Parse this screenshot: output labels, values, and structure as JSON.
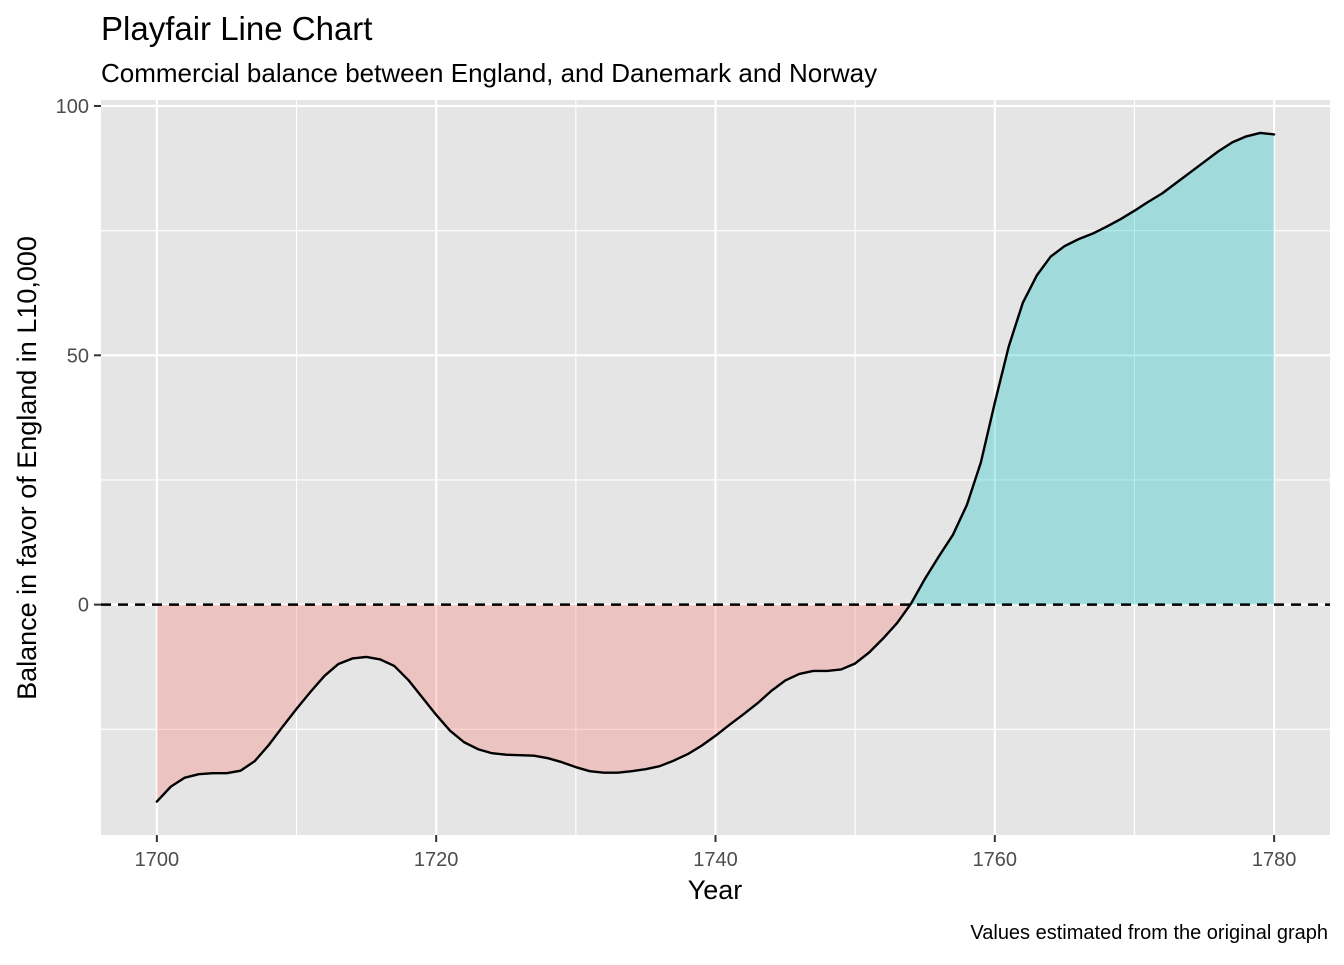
{
  "chart_data": {
    "type": "area",
    "title": "Playfair Line Chart",
    "subtitle": "Commercial balance between England, and Danemark and Norway",
    "xlabel": "Year",
    "ylabel": "Balance in favor of England in L10,000",
    "caption": "Values estimated from the original graph",
    "xlim": [
      1696,
      1784
    ],
    "ylim": [
      -46.2,
      101.2
    ],
    "x_ticks": [
      1700,
      1720,
      1740,
      1760,
      1780
    ],
    "x_tick_labels": [
      "1700",
      "1720",
      "1740",
      "1760",
      "1780"
    ],
    "y_ticks": [
      0,
      50,
      100
    ],
    "y_tick_labels": [
      "0",
      "50",
      "100"
    ],
    "x_minor_breaks": [
      1710,
      1730,
      1750,
      1770
    ],
    "y_minor_breaks": [
      -25,
      25,
      75
    ],
    "reference_line": {
      "y": 0,
      "style": "dashed",
      "color": "#000000"
    },
    "fill_colors": {
      "negative": "#F8766D",
      "positive": "#00BFC4"
    },
    "fill_opacity": 0.3,
    "panel_background": "#E5E5E5",
    "grid": true,
    "series": [
      {
        "name": "Balance",
        "x": [
          1700,
          1701,
          1702,
          1703,
          1704,
          1705,
          1706,
          1707,
          1708,
          1709,
          1710,
          1711,
          1712,
          1713,
          1714,
          1715,
          1716,
          1717,
          1718,
          1719,
          1720,
          1721,
          1722,
          1723,
          1724,
          1725,
          1726,
          1727,
          1728,
          1729,
          1730,
          1731,
          1732,
          1733,
          1734,
          1735,
          1736,
          1737,
          1738,
          1739,
          1740,
          1741,
          1742,
          1743,
          1744,
          1745,
          1746,
          1747,
          1748,
          1749,
          1750,
          1751,
          1752,
          1753,
          1754,
          1755,
          1756,
          1757,
          1758,
          1759,
          1760,
          1761,
          1762,
          1763,
          1764,
          1765,
          1766,
          1767,
          1768,
          1769,
          1770,
          1771,
          1772,
          1773,
          1774,
          1775,
          1776,
          1777,
          1778,
          1779,
          1780
        ],
        "values": [
          -39.5,
          -36.5,
          -34.7,
          -34.0,
          -33.8,
          -33.8,
          -33.3,
          -31.4,
          -28.2,
          -24.5,
          -20.9,
          -17.5,
          -14.3,
          -11.9,
          -10.8,
          -10.5,
          -11.0,
          -12.3,
          -15.1,
          -18.6,
          -22.1,
          -25.3,
          -27.6,
          -29.0,
          -29.8,
          -30.1,
          -30.2,
          -30.3,
          -30.8,
          -31.6,
          -32.6,
          -33.4,
          -33.7,
          -33.7,
          -33.4,
          -33.0,
          -32.4,
          -31.3,
          -30.0,
          -28.3,
          -26.3,
          -24.1,
          -22.0,
          -19.8,
          -17.3,
          -15.2,
          -13.9,
          -13.3,
          -13.3,
          -13.0,
          -11.8,
          -9.6,
          -6.8,
          -3.7,
          0.2,
          5.2,
          9.7,
          14.0,
          20.0,
          28.5,
          40.5,
          51.8,
          60.5,
          66.0,
          69.8,
          71.9,
          73.3,
          74.4,
          75.8,
          77.3,
          79.0,
          80.8,
          82.5,
          84.6,
          86.7,
          88.8,
          90.9,
          92.7,
          93.9,
          94.6,
          94.3
        ]
      }
    ]
  }
}
